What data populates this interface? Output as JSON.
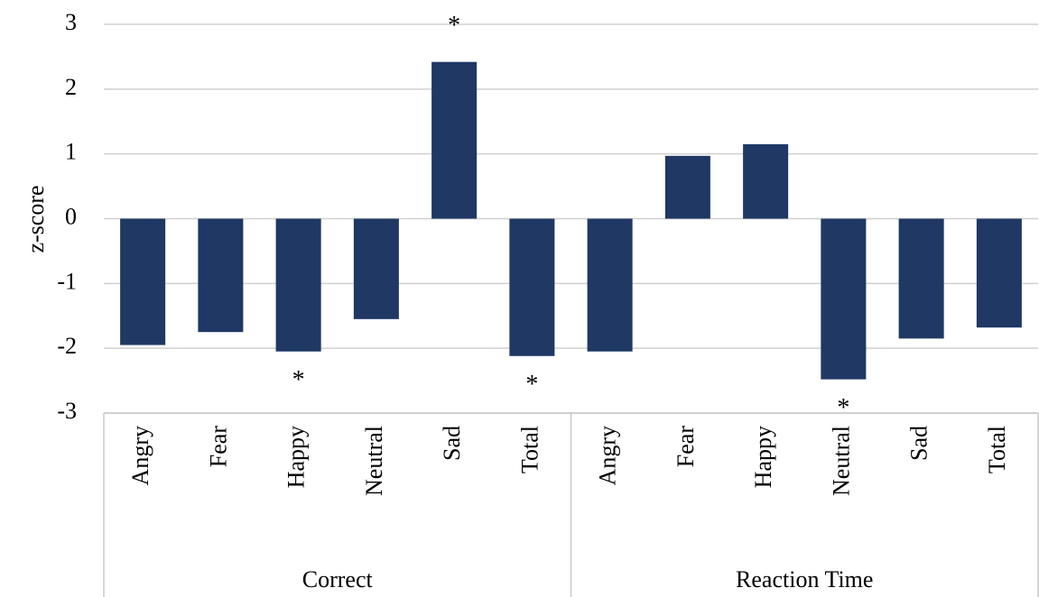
{
  "chart_data": {
    "type": "bar",
    "y_label": "z-score",
    "color": "#1f3864",
    "ylim": [
      -3,
      3
    ],
    "yticks": [
      -3,
      -2,
      -1,
      0,
      1,
      2,
      3
    ],
    "grid": true,
    "groups": [
      {
        "name": "Correct",
        "categories": [
          "Angry",
          "Fear",
          "Happy",
          "Neutral",
          "Sad",
          "Total"
        ],
        "values": [
          -1.95,
          -1.75,
          -2.05,
          -1.55,
          2.42,
          -2.12
        ],
        "annotations": [
          {
            "text": "*",
            "category": "Happy"
          },
          {
            "text": "*",
            "category": "Sad"
          },
          {
            "text": "*",
            "category": "Total"
          }
        ]
      },
      {
        "name": "Reaction Time",
        "categories": [
          "Angry",
          "Fear",
          "Happy",
          "Neutral",
          "Sad",
          "Total"
        ],
        "values": [
          -2.05,
          0.97,
          1.15,
          -2.48,
          -1.85,
          -1.68
        ],
        "annotations": [
          {
            "text": "*",
            "category": "Neutral"
          }
        ]
      }
    ]
  }
}
